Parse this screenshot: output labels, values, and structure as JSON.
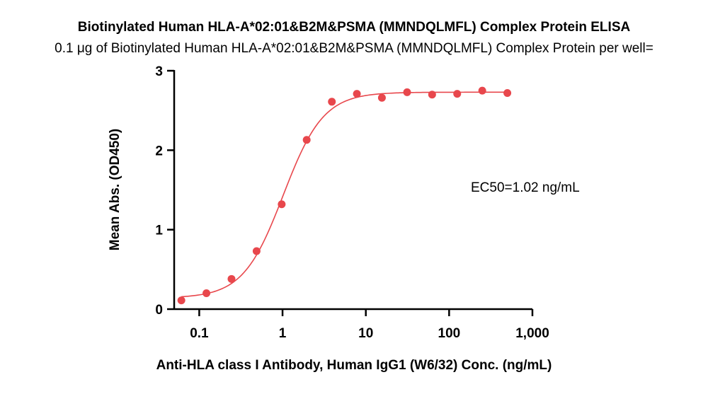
{
  "chart_data": {
    "type": "scatter",
    "title": "Biotinylated Human HLA-A*02:01&B2M&PSMA (MMNDQLMFL) Complex Protein ELISA",
    "subtitle": "0.1 μg of Biotinylated Human HLA-A*02:01&B2M&PSMA (MMNDQLMFL) Complex Protein per well=",
    "xlabel": "Anti-HLA class I Antibody, Human IgG1 (W6/32) Conc. (ng/mL)",
    "ylabel": "Mean Abs. (OD450)",
    "xscale": "log",
    "xlim": [
      0.05,
      1000
    ],
    "ylim": [
      0,
      3
    ],
    "xticks": [
      0.1,
      1,
      10,
      100,
      1000
    ],
    "xtick_labels": [
      "0.1",
      "1",
      "10",
      "100",
      "1,000"
    ],
    "yticks": [
      0,
      1,
      2,
      3
    ],
    "ytick_labels": [
      "0",
      "1",
      "2",
      "3"
    ],
    "color": "#e8474c",
    "annotation": "EC50=1.02 ng/mL",
    "points": {
      "x": [
        0.061,
        0.122,
        0.244,
        0.488,
        0.977,
        1.95,
        3.91,
        7.81,
        15.6,
        31.3,
        62.5,
        125,
        250,
        500
      ],
      "y": [
        0.11,
        0.2,
        0.38,
        0.73,
        1.32,
        2.13,
        2.61,
        2.71,
        2.66,
        2.73,
        2.7,
        2.71,
        2.75,
        2.72
      ]
    },
    "fit": {
      "type": "4PL",
      "bottom": 0.14,
      "top": 2.73,
      "ec50": 1.02,
      "hill": 1.8
    }
  }
}
